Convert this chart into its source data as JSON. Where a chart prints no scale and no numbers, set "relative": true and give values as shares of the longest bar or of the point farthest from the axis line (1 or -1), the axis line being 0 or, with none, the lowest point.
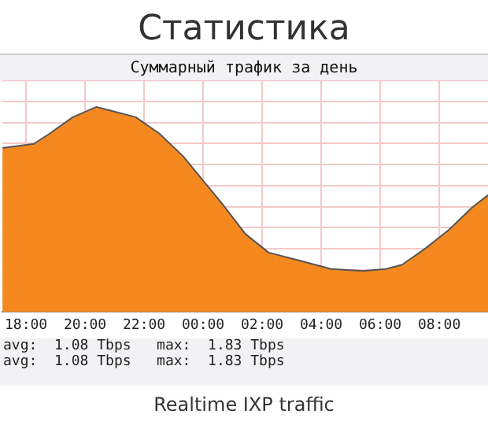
{
  "chart_data": {
    "type": "area",
    "title": "Статистика",
    "subtitle": "Суммарный трафик за день",
    "relative": true,
    "x": [
      "--01-01T17:12",
      "--01-01T18:16",
      "--01-01T18:48",
      "--01-01T19:35",
      "--01-01T20:23",
      "--01-01T20:55",
      "--01-01T21:43",
      "--01-01T22:31",
      "--01-01T23:19",
      "--01-01T23:50",
      "--01-02T00:38",
      "--01-02T01:26",
      "--01-02T02:13",
      "--01-02T03:17",
      "--01-02T04:20",
      "--01-02T05:25",
      "--01-02T06:12",
      "--01-02T06:44",
      "--01-02T07:32",
      "--01-02T08:19",
      "--01-02T09:07",
      "--01-02T09:39"
    ],
    "series": [
      {
        "color": "#f5891f",
        "values": [
          0.8,
          0.82,
          0.87,
          0.95,
          1,
          0.98,
          0.95,
          0.87,
          0.76,
          0.67,
          0.53,
          0.38,
          0.29,
          0.25,
          0.21,
          0.2,
          0.21,
          0.23,
          0.31,
          0.4,
          0.51,
          0.57
        ]
      }
    ],
    "xlim": [
      "--01-01T17:12",
      "--01-02T09:39"
    ],
    "xticks": [
      {
        "value": "--01-01T18:00",
        "label": "18:00"
      },
      {
        "value": "--01-01T20:00",
        "label": "20:00"
      },
      {
        "value": "--01-01T22:00",
        "label": "22:00"
      },
      {
        "value": "--01-02T00:00",
        "label": "00:00"
      },
      {
        "value": "--01-02T02:00",
        "label": "02:00"
      },
      {
        "value": "--01-02T04:00",
        "label": "04:00"
      },
      {
        "value": "--01-02T06:00",
        "label": "06:00"
      },
      {
        "value": "--01-02T08:00",
        "label": "08:00"
      }
    ],
    "grid": true,
    "legend": false,
    "marker": "none",
    "annotations": [
      "avg:  1.08 Tbps   max:  1.83 Tbps",
      "avg:  1.08 Tbps   max:  1.83 Tbps",
      "Realtime IXP traffic"
    ]
  }
}
